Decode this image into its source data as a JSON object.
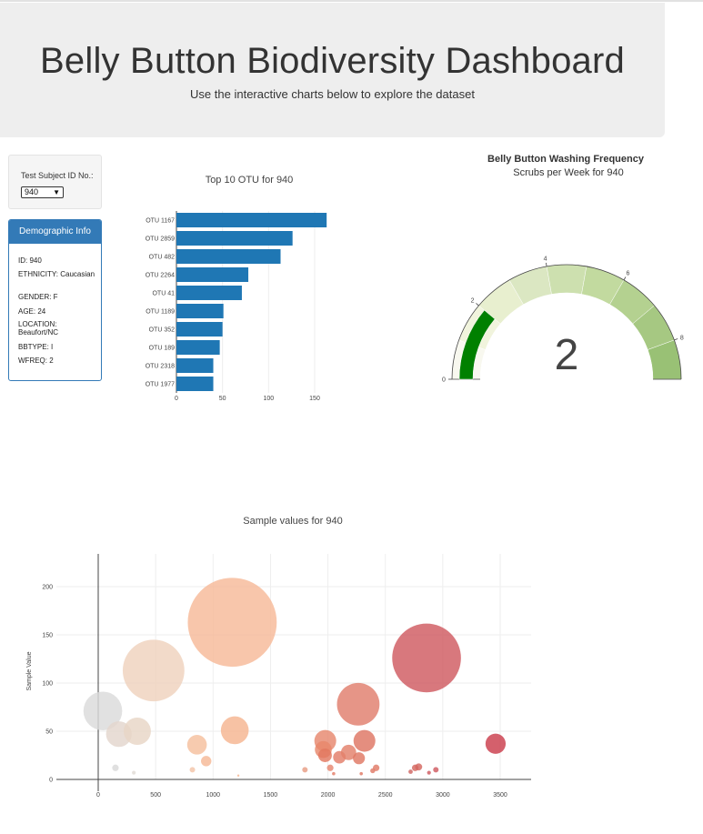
{
  "header": {
    "title": "Belly Button Biodiversity Dashboard",
    "subtitle": "Use the interactive charts below to explore the dataset"
  },
  "selector": {
    "label": "Test Subject ID No.:",
    "selected": "940"
  },
  "demographics": {
    "heading": "Demographic Info",
    "rows": [
      "ID: 940",
      "ETHNICITY: Caucasian",
      "GENDER: F",
      "AGE: 24",
      "LOCATION: Beaufort/NC",
      "BBTYPE: I",
      "WFREQ: 2"
    ]
  },
  "chart_data": [
    {
      "type": "bar",
      "orientation": "horizontal",
      "title": "Top 10 OTU for 940",
      "categories": [
        "OTU 1167",
        "OTU 2859",
        "OTU 482",
        "OTU 2264",
        "OTU 41",
        "OTU 1189",
        "OTU 352",
        "OTU 189",
        "OTU 2318",
        "OTU 1977"
      ],
      "values": [
        163,
        126,
        113,
        78,
        71,
        51,
        50,
        47,
        40,
        40
      ],
      "xlim": [
        0,
        172
      ],
      "xticks": [
        0,
        50,
        100,
        150
      ],
      "color": "#1f77b4"
    },
    {
      "type": "gauge",
      "title": "Belly Button Washing Frequency",
      "subtitle": "Scrubs per Week for 940",
      "value": 2,
      "range": [
        0,
        9
      ],
      "ticks": [
        0,
        2,
        4,
        6,
        8
      ],
      "bar_color": "#008000",
      "step_colors": [
        "#f8f8ef",
        "#f1f4dd",
        "#e8efcf",
        "#dbe7c2",
        "#cde0af",
        "#c2da9f",
        "#b4d190",
        "#a6c882",
        "#99c175"
      ]
    },
    {
      "type": "scatter",
      "title": "Sample values for 940",
      "ylabel": "Sample Value",
      "xlim": [
        -400,
        3800
      ],
      "ylim": [
        -14,
        235
      ],
      "xticks": [
        0,
        500,
        1000,
        1500,
        2000,
        2500,
        3000,
        3500
      ],
      "yticks": [
        0,
        50,
        100,
        150,
        200
      ],
      "points": [
        {
          "x": 40,
          "y": 71,
          "size": 71,
          "color": "#dadada"
        },
        {
          "x": 180,
          "y": 47,
          "size": 47,
          "color": "#e3d6cd"
        },
        {
          "x": 340,
          "y": 50,
          "size": 50,
          "color": "#e8d5c6"
        },
        {
          "x": 482,
          "y": 113,
          "size": 113,
          "color": "#efd2bd"
        },
        {
          "x": 860,
          "y": 36,
          "size": 36,
          "color": "#f5c09e"
        },
        {
          "x": 940,
          "y": 19,
          "size": 19,
          "color": "#f5b896"
        },
        {
          "x": 1167,
          "y": 163,
          "size": 163,
          "color": "#f7b999"
        },
        {
          "x": 1189,
          "y": 51,
          "size": 51,
          "color": "#f5b590"
        },
        {
          "x": 1977,
          "y": 40,
          "size": 40,
          "color": "#e6876e"
        },
        {
          "x": 1960,
          "y": 31,
          "size": 31,
          "color": "#e8876b"
        },
        {
          "x": 1975,
          "y": 25,
          "size": 25,
          "color": "#e2775f"
        },
        {
          "x": 2100,
          "y": 23,
          "size": 23,
          "color": "#e37e69"
        },
        {
          "x": 2180,
          "y": 28,
          "size": 28,
          "color": "#e3806a"
        },
        {
          "x": 2264,
          "y": 78,
          "size": 78,
          "color": "#e07e6c"
        },
        {
          "x": 2270,
          "y": 22,
          "size": 22,
          "color": "#df7763"
        },
        {
          "x": 2318,
          "y": 40,
          "size": 40,
          "color": "#de7563"
        },
        {
          "x": 2859,
          "y": 126,
          "size": 126,
          "color": "#cf5a60"
        },
        {
          "x": 3460,
          "y": 37,
          "size": 37,
          "color": "#cb3d4c"
        },
        {
          "x": 150,
          "y": 12,
          "size": 12,
          "color": "#d9d9d9"
        },
        {
          "x": 310,
          "y": 7,
          "size": 7,
          "color": "#e0dcd6"
        },
        {
          "x": 820,
          "y": 10,
          "size": 10,
          "color": "#f3c4a8"
        },
        {
          "x": 1800,
          "y": 10,
          "size": 10,
          "color": "#e89e85"
        },
        {
          "x": 2020,
          "y": 12,
          "size": 12,
          "color": "#e68670"
        },
        {
          "x": 2420,
          "y": 12,
          "size": 12,
          "color": "#e07a67"
        },
        {
          "x": 2390,
          "y": 9,
          "size": 9,
          "color": "#e07a67"
        },
        {
          "x": 2760,
          "y": 12,
          "size": 12,
          "color": "#d4675f"
        },
        {
          "x": 2790,
          "y": 13,
          "size": 13,
          "color": "#d4675f"
        },
        {
          "x": 2720,
          "y": 8,
          "size": 8,
          "color": "#d06561"
        },
        {
          "x": 2940,
          "y": 10,
          "size": 10,
          "color": "#cf5a60"
        },
        {
          "x": 2880,
          "y": 7,
          "size": 7,
          "color": "#cf5a60"
        },
        {
          "x": 1220,
          "y": 4,
          "size": 4,
          "color": "#f5b590"
        },
        {
          "x": 2050,
          "y": 6,
          "size": 6,
          "color": "#e37e69"
        },
        {
          "x": 2290,
          "y": 6,
          "size": 6,
          "color": "#df7763"
        }
      ]
    }
  ]
}
